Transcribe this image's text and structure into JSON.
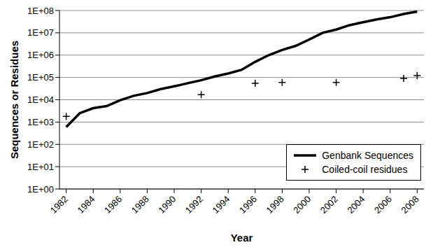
{
  "chart_data": {
    "type": "line",
    "x_label": "Year",
    "y_label": "Sequences or Residues",
    "log": "y",
    "grid": true,
    "legend": "lower right",
    "xlim": [
      1981.5,
      2008.5
    ],
    "xticks": [
      1982,
      1984,
      1986,
      1988,
      1990,
      1992,
      1994,
      1996,
      1998,
      2000,
      2002,
      2004,
      2006,
      2008
    ],
    "ylim": [
      1,
      100000000
    ],
    "yticks": [
      {
        "value": 1,
        "label": "1E+00"
      },
      {
        "value": 10,
        "label": "1E+01"
      },
      {
        "value": 100,
        "label": "1E+02"
      },
      {
        "value": 1000,
        "label": "1E+03"
      },
      {
        "value": 10000,
        "label": "1E+04"
      },
      {
        "value": 100000,
        "label": "1E+05"
      },
      {
        "value": 1000000,
        "label": "1E+06"
      },
      {
        "value": 10000000,
        "label": "1E+07"
      },
      {
        "value": 100000000,
        "label": "1E+08"
      }
    ],
    "series": [
      {
        "name": "Genbank Sequences",
        "type": "line",
        "color": "#000000",
        "line_style": "solid",
        "marker": "none",
        "x": [
          1982,
          1983,
          1984,
          1985,
          1986,
          1987,
          1988,
          1989,
          1990,
          1991,
          1992,
          1993,
          1994,
          1995,
          1996,
          1997,
          1998,
          1999,
          2000,
          2001,
          2002,
          2003,
          2004,
          2005,
          2006,
          2007,
          2008
        ],
        "values": [
          600,
          2500,
          4200,
          5200,
          9500,
          15000,
          20000,
          30000,
          40000,
          55000,
          75000,
          110000,
          150000,
          220000,
          500000,
          1000000,
          1700000,
          2600000,
          5000000,
          10000000,
          14000000,
          22000000,
          30000000,
          40000000,
          50000000,
          70000000,
          90000000
        ]
      },
      {
        "name": "Coiled-coil residues",
        "type": "scatter",
        "color": "#000000",
        "marker": "plus",
        "x": [
          1982,
          1992,
          1996,
          1998,
          2002,
          2007,
          2008
        ],
        "values": [
          1800,
          17000,
          55000,
          60000,
          60000,
          90000,
          120000
        ]
      }
    ]
  }
}
